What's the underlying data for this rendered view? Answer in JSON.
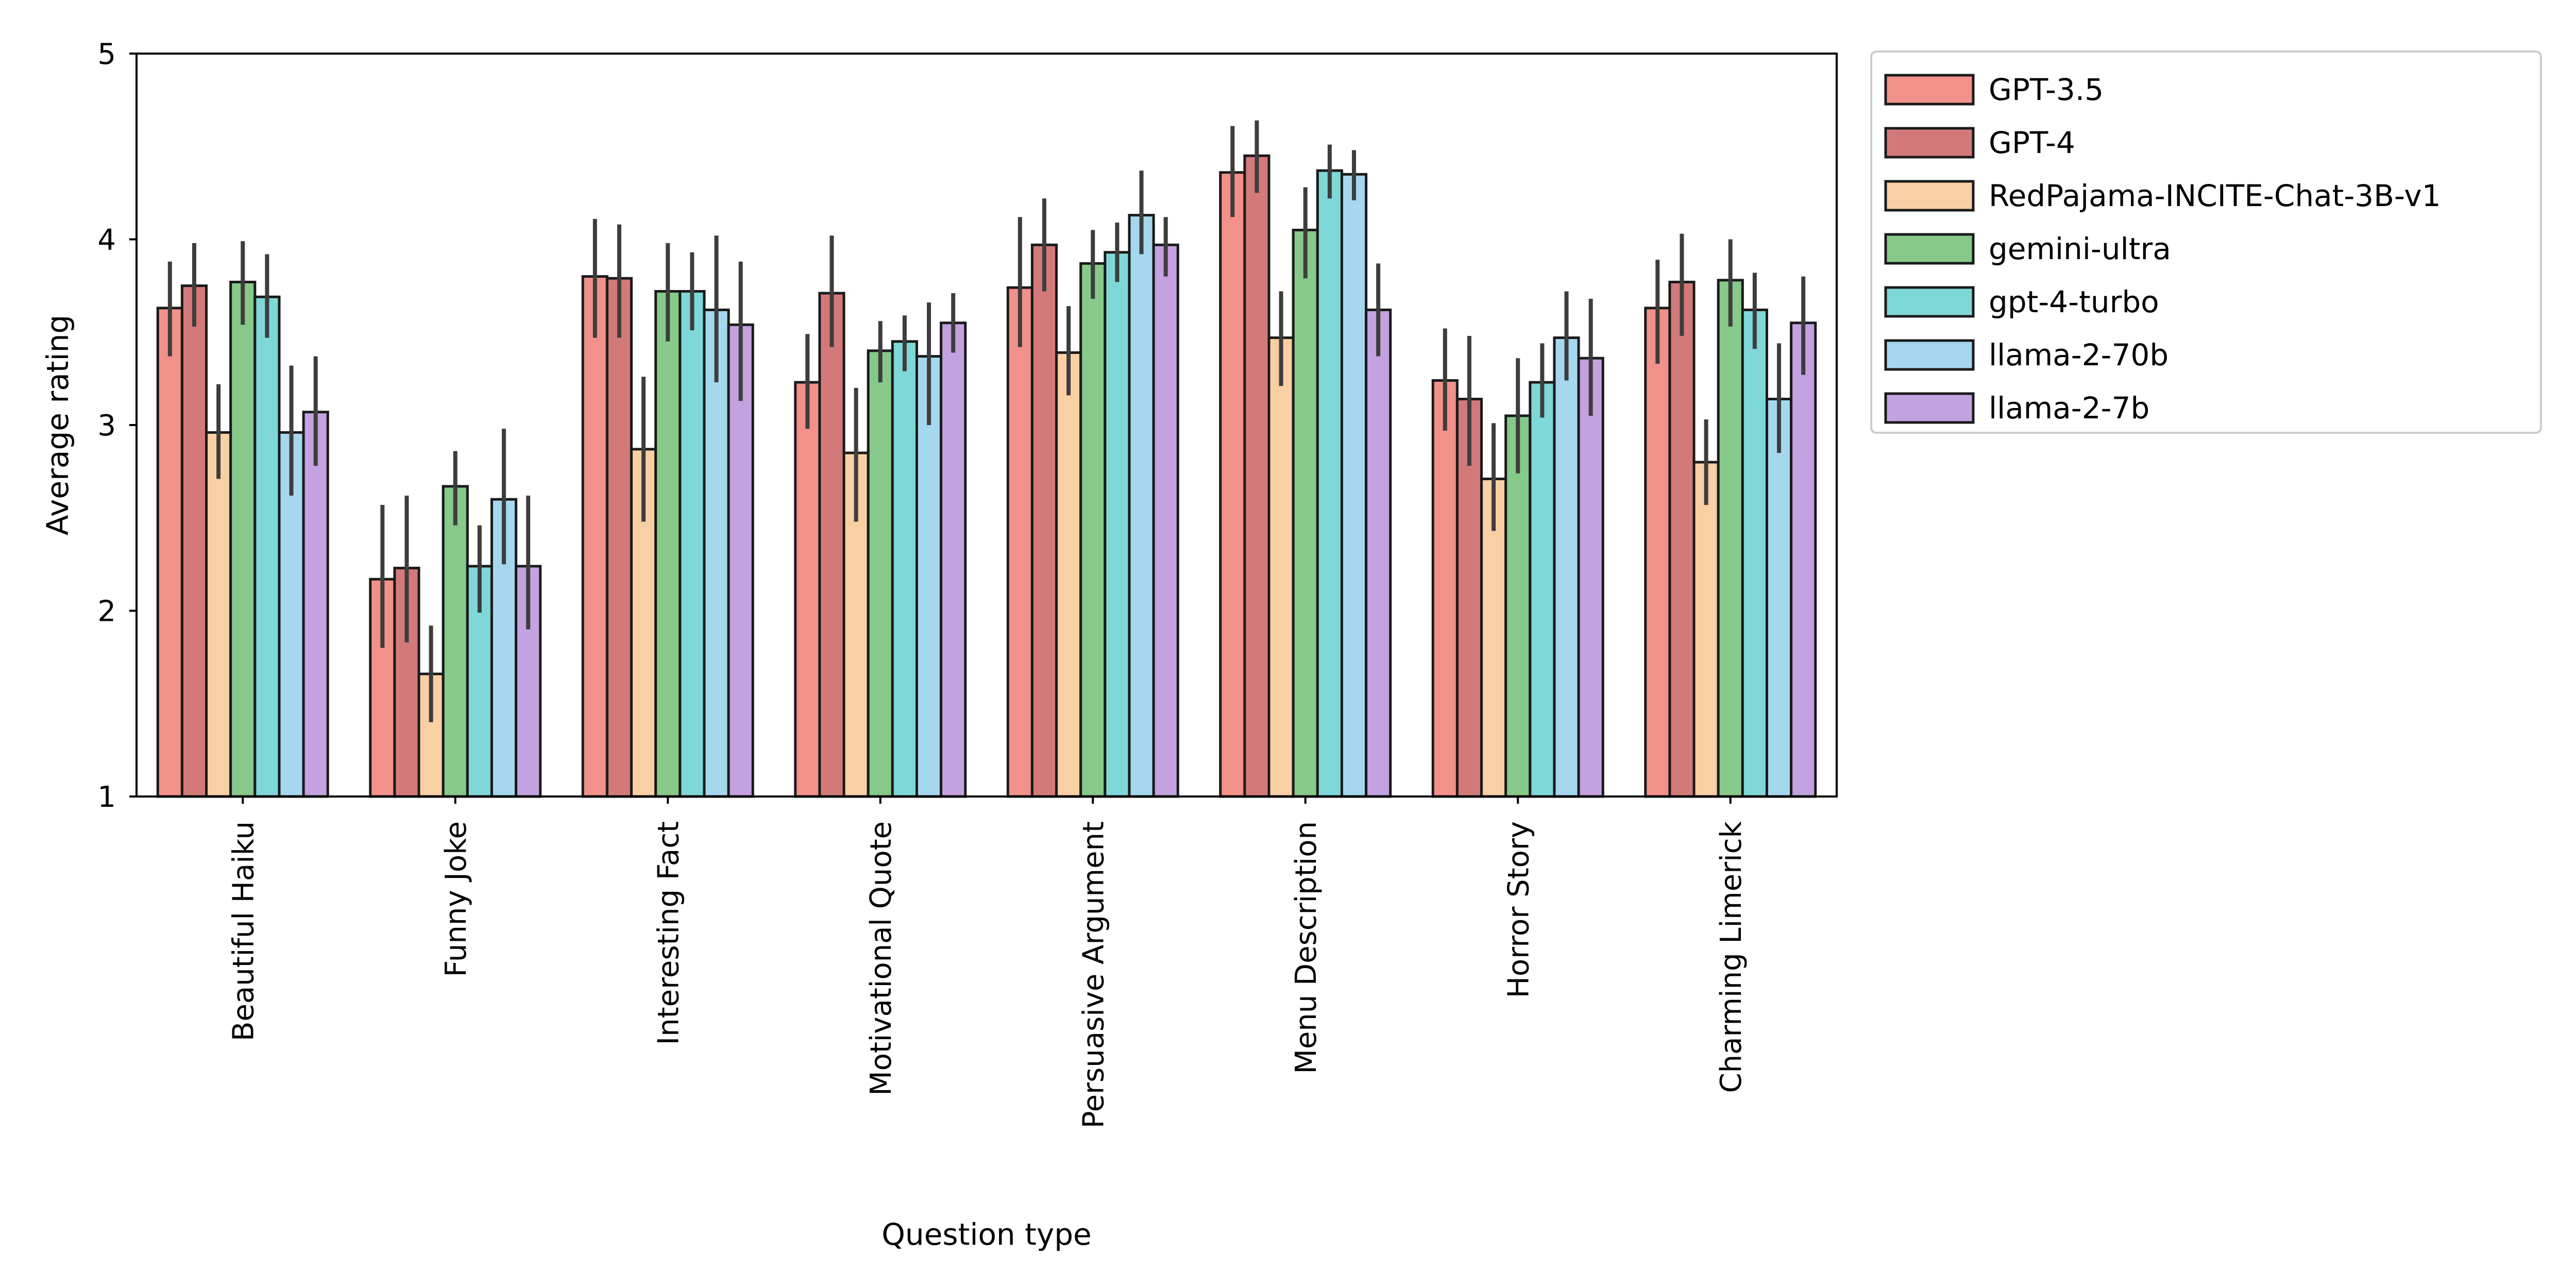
{
  "chart_data": {
    "type": "bar",
    "title": "",
    "xlabel": "Question type",
    "ylabel": "Average rating",
    "ylim": [
      1,
      5
    ],
    "yticks": [
      "1",
      "2",
      "3",
      "4",
      "5"
    ],
    "legend_position": "outside-right-top",
    "categories": [
      "Beautiful Haiku",
      "Funny Joke",
      "Interesting Fact",
      "Motivational Quote",
      "Persuasive Argument",
      "Menu Description",
      "Horror Story",
      "Charming Limerick"
    ],
    "series": [
      {
        "name": "GPT-3.5",
        "color": "#f2908a",
        "values": [
          3.63,
          2.17,
          3.8,
          3.23,
          3.74,
          4.36,
          3.24,
          3.63
        ],
        "err_low": [
          3.37,
          1.8,
          3.47,
          2.98,
          3.42,
          4.12,
          2.97,
          3.33
        ],
        "err_high": [
          3.88,
          2.57,
          4.11,
          3.49,
          4.12,
          4.61,
          3.52,
          3.89
        ]
      },
      {
        "name": "GPT-4",
        "color": "#d4797a",
        "values": [
          3.75,
          2.23,
          3.79,
          3.71,
          3.97,
          4.45,
          3.14,
          3.77
        ],
        "err_low": [
          3.53,
          1.83,
          3.47,
          3.42,
          3.72,
          4.25,
          2.78,
          3.48
        ],
        "err_high": [
          3.98,
          2.62,
          4.08,
          4.02,
          4.22,
          4.64,
          3.48,
          4.03
        ]
      },
      {
        "name": "RedPajama-INCITE-Chat-3B-v1",
        "color": "#f9cfa4",
        "values": [
          2.96,
          1.66,
          2.87,
          2.85,
          3.39,
          3.47,
          2.71,
          2.8
        ],
        "err_low": [
          2.71,
          1.4,
          2.48,
          2.48,
          3.16,
          3.21,
          2.43,
          2.57
        ],
        "err_high": [
          3.22,
          1.92,
          3.26,
          3.2,
          3.64,
          3.72,
          3.01,
          3.03
        ]
      },
      {
        "name": "gemini-ultra",
        "color": "#86c98a",
        "values": [
          3.77,
          2.67,
          3.72,
          3.4,
          3.87,
          4.05,
          3.05,
          3.78
        ],
        "err_low": [
          3.54,
          2.46,
          3.45,
          3.23,
          3.68,
          3.79,
          2.74,
          3.53
        ],
        "err_high": [
          3.99,
          2.86,
          3.98,
          3.56,
          4.05,
          4.28,
          3.36,
          4.0
        ]
      },
      {
        "name": "gpt-4-turbo",
        "color": "#7fd8d8",
        "values": [
          3.69,
          2.24,
          3.72,
          3.45,
          3.93,
          4.37,
          3.23,
          3.62
        ],
        "err_low": [
          3.47,
          1.99,
          3.51,
          3.29,
          3.77,
          4.22,
          3.04,
          3.41
        ],
        "err_high": [
          3.92,
          2.46,
          3.93,
          3.59,
          4.09,
          4.51,
          3.44,
          3.82
        ]
      },
      {
        "name": "llama-2-70b",
        "color": "#a5d8ee",
        "values": [
          2.96,
          2.6,
          3.62,
          3.37,
          4.13,
          4.35,
          3.47,
          3.14
        ],
        "err_low": [
          2.62,
          2.25,
          3.23,
          3.0,
          3.92,
          4.21,
          3.24,
          2.85
        ],
        "err_high": [
          3.32,
          2.98,
          4.02,
          3.66,
          4.37,
          4.48,
          3.72,
          3.44
        ]
      },
      {
        "name": "llama-2-7b",
        "color": "#c4a1e0",
        "values": [
          3.07,
          2.24,
          3.54,
          3.55,
          3.97,
          3.62,
          3.36,
          3.55
        ],
        "err_low": [
          2.78,
          1.9,
          3.13,
          3.39,
          3.8,
          3.37,
          3.05,
          3.27
        ],
        "err_high": [
          3.37,
          2.62,
          3.88,
          3.71,
          4.12,
          3.87,
          3.68,
          3.8
        ]
      }
    ]
  }
}
